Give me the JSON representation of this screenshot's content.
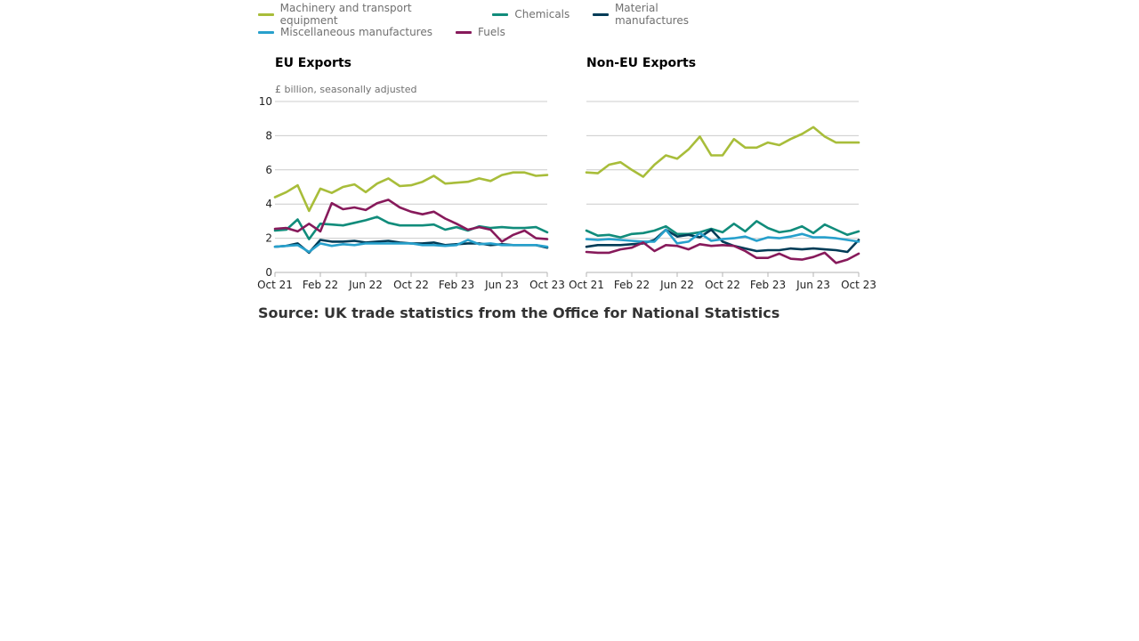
{
  "legend": {
    "row1": [
      {
        "label": "Machinery and transport equipment",
        "color": "#a8bd3a"
      },
      {
        "label": "Chemicals",
        "color": "#118c7b"
      },
      {
        "label": "Material manufactures",
        "color": "#003c57"
      }
    ],
    "row2": [
      {
        "label": "Miscellaneous manufactures",
        "color": "#27a0cc"
      },
      {
        "label": "Fuels",
        "color": "#871a5b"
      }
    ]
  },
  "source": "Source: UK trade statistics from the Office for National Statistics",
  "chart_data": [
    {
      "type": "line",
      "title": "EU Exports",
      "ylabel": "£ billion, seasonally adjusted",
      "ylim": [
        0,
        10
      ],
      "yticks": [
        "0",
        "2",
        "4",
        "6",
        "8",
        "10"
      ],
      "xticks": [
        "Oct 21",
        "Feb 22",
        "Jun 22",
        "Oct 22",
        "Feb 23",
        "Jun 23",
        "Oct 23"
      ],
      "x": [
        "2021-10",
        "2021-11",
        "2021-12",
        "2022-01",
        "2022-02",
        "2022-03",
        "2022-04",
        "2022-05",
        "2022-06",
        "2022-07",
        "2022-08",
        "2022-09",
        "2022-10",
        "2022-11",
        "2022-12",
        "2023-01",
        "2023-02",
        "2023-03",
        "2023-04",
        "2023-05",
        "2023-06",
        "2023-07",
        "2023-08",
        "2023-09",
        "2023-10"
      ],
      "grid": true,
      "series": [
        {
          "name": "Machinery and transport equipment",
          "color": "#a8bd3a",
          "values": [
            4.4,
            4.7,
            5.1,
            3.6,
            4.9,
            4.65,
            5.0,
            5.15,
            4.7,
            5.2,
            5.5,
            5.05,
            5.1,
            5.3,
            5.65,
            5.2,
            5.25,
            5.3,
            5.5,
            5.35,
            5.7,
            5.85,
            5.85,
            5.65,
            5.7
          ]
        },
        {
          "name": "Chemicals",
          "color": "#118c7b",
          "values": [
            2.45,
            2.5,
            3.1,
            1.95,
            2.85,
            2.8,
            2.75,
            2.9,
            3.05,
            3.25,
            2.9,
            2.75,
            2.75,
            2.75,
            2.8,
            2.5,
            2.65,
            2.45,
            2.7,
            2.6,
            2.65,
            2.6,
            2.6,
            2.65,
            2.35
          ]
        },
        {
          "name": "Material manufactures",
          "color": "#003c57",
          "values": [
            1.5,
            1.55,
            1.7,
            1.15,
            1.9,
            1.8,
            1.8,
            1.85,
            1.75,
            1.8,
            1.85,
            1.75,
            1.7,
            1.7,
            1.75,
            1.6,
            1.65,
            1.7,
            1.7,
            1.6,
            1.65,
            1.6,
            1.6,
            1.6,
            1.45
          ]
        },
        {
          "name": "Miscellaneous manufactures",
          "color": "#27a0cc",
          "values": [
            1.5,
            1.55,
            1.6,
            1.2,
            1.7,
            1.55,
            1.65,
            1.6,
            1.7,
            1.7,
            1.7,
            1.7,
            1.7,
            1.6,
            1.6,
            1.55,
            1.6,
            1.9,
            1.65,
            1.7,
            1.6,
            1.6,
            1.6,
            1.6,
            1.5
          ]
        },
        {
          "name": "Fuels",
          "color": "#871a5b",
          "values": [
            2.55,
            2.6,
            2.4,
            2.85,
            2.4,
            4.05,
            3.7,
            3.8,
            3.65,
            4.05,
            4.25,
            3.8,
            3.55,
            3.4,
            3.55,
            3.15,
            2.85,
            2.5,
            2.65,
            2.5,
            1.8,
            2.2,
            2.45,
            2.0,
            1.95
          ]
        }
      ]
    },
    {
      "type": "line",
      "title": "Non-EU Exports",
      "ylabel": "",
      "ylim": [
        0,
        10
      ],
      "xticks": [
        "Oct 21",
        "Feb 22",
        "Jun 22",
        "Oct 22",
        "Feb 23",
        "Jun 23",
        "Oct 23"
      ],
      "x": [
        "2021-10",
        "2021-11",
        "2021-12",
        "2022-01",
        "2022-02",
        "2022-03",
        "2022-04",
        "2022-05",
        "2022-06",
        "2022-07",
        "2022-08",
        "2022-09",
        "2022-10",
        "2022-11",
        "2022-12",
        "2023-01",
        "2023-02",
        "2023-03",
        "2023-04",
        "2023-05",
        "2023-06",
        "2023-07",
        "2023-08",
        "2023-09",
        "2023-10"
      ],
      "grid": true,
      "series": [
        {
          "name": "Machinery and transport equipment",
          "color": "#a8bd3a",
          "values": [
            5.85,
            5.8,
            6.3,
            6.45,
            6.0,
            5.6,
            6.3,
            6.85,
            6.65,
            7.2,
            7.95,
            6.85,
            6.85,
            7.8,
            7.3,
            7.3,
            7.6,
            7.45,
            7.8,
            8.1,
            8.5,
            7.95,
            7.6,
            7.6,
            7.6
          ]
        },
        {
          "name": "Chemicals",
          "color": "#118c7b",
          "values": [
            2.45,
            2.15,
            2.2,
            2.05,
            2.25,
            2.3,
            2.45,
            2.7,
            2.25,
            2.25,
            2.35,
            2.55,
            2.35,
            2.85,
            2.4,
            3.0,
            2.6,
            2.35,
            2.45,
            2.7,
            2.3,
            2.8,
            2.5,
            2.2,
            2.4
          ]
        },
        {
          "name": "Material manufactures",
          "color": "#003c57",
          "values": [
            1.5,
            1.6,
            1.6,
            1.6,
            1.65,
            1.7,
            1.9,
            2.5,
            2.1,
            2.2,
            2.05,
            2.5,
            1.8,
            1.55,
            1.4,
            1.25,
            1.3,
            1.3,
            1.4,
            1.35,
            1.4,
            1.35,
            1.3,
            1.2,
            1.9
          ]
        },
        {
          "name": "Miscellaneous manufactures",
          "color": "#27a0cc",
          "values": [
            1.95,
            1.9,
            1.95,
            1.9,
            1.85,
            1.8,
            1.8,
            2.5,
            1.7,
            1.8,
            2.3,
            1.85,
            1.95,
            2.0,
            2.1,
            1.85,
            2.05,
            2.0,
            2.1,
            2.25,
            2.05,
            2.05,
            2.0,
            1.9,
            1.8
          ]
        },
        {
          "name": "Fuels",
          "color": "#871a5b",
          "values": [
            1.2,
            1.15,
            1.15,
            1.35,
            1.45,
            1.75,
            1.25,
            1.6,
            1.55,
            1.35,
            1.65,
            1.55,
            1.6,
            1.55,
            1.25,
            0.85,
            0.85,
            1.1,
            0.8,
            0.75,
            0.9,
            1.15,
            0.55,
            0.75,
            1.1
          ]
        }
      ]
    }
  ]
}
